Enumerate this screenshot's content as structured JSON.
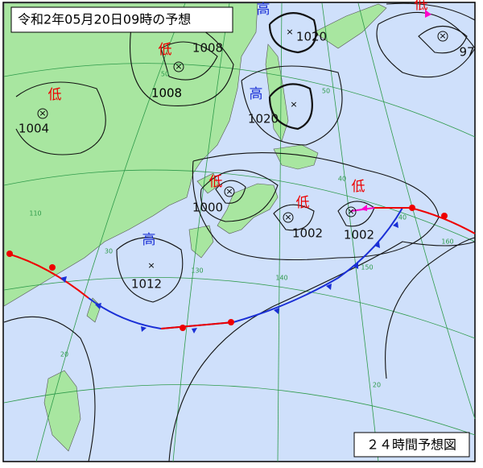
{
  "title": "令和2年05月20日09時の予想",
  "caption": "２４時間予想図",
  "systems": [
    {
      "symbol": "低",
      "pressure": 1008
    },
    {
      "symbol": "高",
      "pressure": 1020
    },
    {
      "symbol": "低",
      "pressure": 1004
    },
    {
      "symbol": "高",
      "pressure": 1020
    },
    {
      "symbol": "低",
      "pressure": 1000
    },
    {
      "symbol": "低",
      "pressure": 1002
    },
    {
      "symbol": "低",
      "pressure": 1002
    },
    {
      "symbol": "高",
      "pressure": 1012
    },
    {
      "symbol": "低",
      "pressure": 97
    }
  ],
  "isobar_labels": [
    1008
  ],
  "grid_labels": [
    "50",
    "50",
    "40",
    "40",
    "30",
    "20",
    "20",
    "110",
    "130",
    "140",
    "150",
    "160"
  ]
}
